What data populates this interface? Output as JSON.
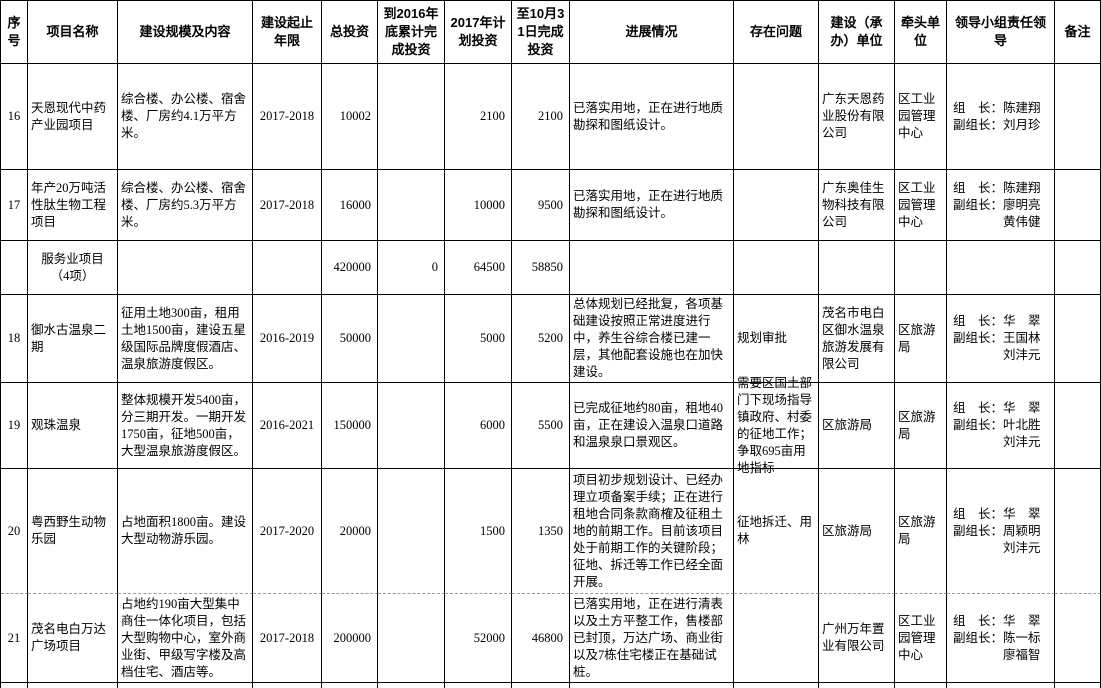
{
  "colors": {
    "grid": "#000000",
    "page_break_dash": "#9a9a9a",
    "background": "#ffffff"
  },
  "header": {
    "columns": [
      "序号",
      "项目名称",
      "建设规模及内容",
      "建设起止年限",
      "总投资",
      "到2016年底累计完成投资",
      "2017年计划投资",
      "至10月31日完成投资",
      "进展情况",
      "存在问题",
      "建设（承办）单位",
      "牵头单位",
      "领导小组责任领导",
      "备注"
    ]
  },
  "rows": [
    {
      "type": "project",
      "no": "16",
      "name": "天恩现代中药产业园项目",
      "scale": "综合楼、办公楼、宿舍楼、厂房约4.1万平方米。",
      "years": "2017-2018",
      "total": "10002",
      "done2016": "",
      "plan2017": "2100",
      "done1031": "2100",
      "progress": "已落实用地，正在进行地质勘探和图纸设计。",
      "problems": "",
      "builder": "广东天恩药业股份有限公司",
      "lead": "区工业园管理中心",
      "leaders": "组　长：陈建翔\n副组长：刘月珍",
      "remark": ""
    },
    {
      "type": "project",
      "no": "17",
      "name": "年产20万吨活性肽生物工程项目",
      "scale": "综合楼、办公楼、宿舍楼、厂房约5.3万平方米。",
      "years": "2017-2018",
      "total": "16000",
      "done2016": "",
      "plan2017": "10000",
      "done1031": "9500",
      "progress": "已落实用地，正在进行地质勘探和图纸设计。",
      "problems": "",
      "builder": "广东奥佳生物科技有限公司",
      "lead": "区工业园管理中心",
      "leaders": "组　长：陈建翔\n副组长：廖明亮\n　　　　黄伟健",
      "remark": ""
    },
    {
      "type": "section",
      "no": "",
      "name": "服务业项目\n（4项）",
      "scale": "",
      "years": "",
      "total": "420000",
      "done2016": "0",
      "plan2017": "64500",
      "done1031": "58850",
      "progress": "",
      "problems": "",
      "builder": "",
      "lead": "",
      "leaders": "",
      "remark": ""
    },
    {
      "type": "project",
      "no": "18",
      "name": "御水古温泉二期",
      "scale": "征用土地300亩，租用土地1500亩，建设五星级国际品牌度假酒店、温泉旅游度假区。",
      "years": "2016-2019",
      "total": "50000",
      "done2016": "",
      "plan2017": "5000",
      "done1031": "5200",
      "progress": "总体规划已经批复，各项基础建设按照正常进度进行中，养生谷综合楼已建一层，其他配套设施也在加快建设。",
      "problems": "规划审批",
      "builder": "茂名市电白区御水温泉旅游发展有限公司",
      "lead": "区旅游局",
      "leaders": "组　长：华　翠\n副组长：王国林\n　　　　刘沣元",
      "remark": ""
    },
    {
      "type": "project",
      "no": "19",
      "name": "观珠温泉",
      "scale": "整体规模开发5400亩，分三期开发。一期开发1750亩，征地500亩，大型温泉旅游度假区。",
      "years": "2016-2021",
      "total": "150000",
      "done2016": "",
      "plan2017": "6000",
      "done1031": "5500",
      "progress": "已完成征地约80亩，租地40亩，正在建设入温泉口道路和温泉泉口景观区。",
      "problems": "需要区国土部门下现场指导镇政府、村委的征地工作；争取695亩用地指标",
      "builder": "区旅游局",
      "lead": "区旅游局",
      "leaders": "组　长：华　翠\n副组长：叶北胜\n　　　　刘沣元",
      "remark": ""
    },
    {
      "type": "project",
      "no": "20",
      "name": "粤西野生动物乐园",
      "scale": "占地面积1800亩。建设大型动物游乐园。",
      "years": "2017-2020",
      "total": "20000",
      "done2016": "",
      "plan2017": "1500",
      "done1031": "1350",
      "progress": "项目初步规划设计、已经办理立项备案手续；正在进行租地合同条款商榷及征租土地的前期工作。目前该项目处于前期工作的关键阶段；征地、拆迁等工作已经全面开展。",
      "problems": "征地拆迁、用林",
      "builder": "区旅游局",
      "lead": "区旅游局",
      "leaders": "组　长：华　翠\n副组长：周颖明\n　　　　刘沣元",
      "remark": ""
    },
    {
      "type": "project",
      "no": "21",
      "name": "茂名电白万达广场项目",
      "scale": "占地约190亩大型集中商住一体化项目，包括大型购物中心，室外商业街、甲级写字楼及高档住宅、酒店等。",
      "years": "2017-2018",
      "total": "200000",
      "done2016": "",
      "plan2017": "52000",
      "done1031": "46800",
      "progress": "已落实用地，正在进行清表以及土方平整工作，售楼部已封顶，万达广场、商业街以及7栋住宅楼正在基础试桩。",
      "problems": "",
      "builder": "广州万年置业有限公司",
      "lead": "区工业园管理中心",
      "leaders": "组　长：华　翠\n副组长：陈一标\n　　　　廖福智",
      "remark": ""
    }
  ]
}
